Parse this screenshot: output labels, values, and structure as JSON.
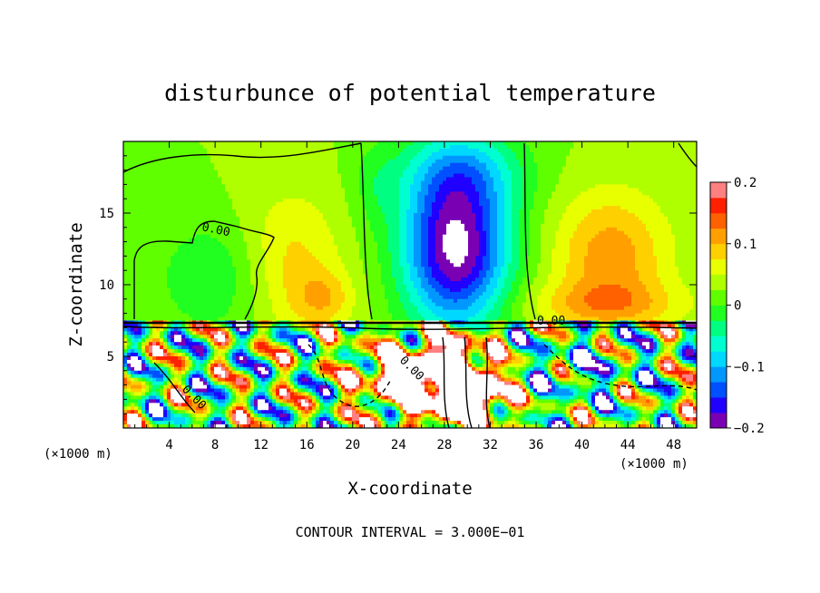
{
  "chart_data": {
    "type": "heatmap",
    "title": "disturbunce of potential temperature",
    "xlabel": "X-coordinate",
    "ylabel": "Z-coordinate",
    "x_unit_label_left": "(×1000 m)",
    "x_unit_label_right": "(×1000 m)",
    "xlim": [
      0,
      50
    ],
    "ylim": [
      0,
      20
    ],
    "x_ticks": [
      4,
      8,
      12,
      16,
      20,
      24,
      28,
      32,
      36,
      40,
      44,
      48
    ],
    "x_tick_labels": [
      "4",
      "8",
      "12",
      "16",
      "20",
      "24",
      "28",
      "32",
      "36",
      "40",
      "44",
      "48"
    ],
    "y_ticks": [
      5,
      10,
      15
    ],
    "y_tick_labels": [
      "5",
      "10",
      "15"
    ],
    "colorbar": {
      "vmin": -0.2,
      "vmax": 0.2,
      "levels": [
        -0.2,
        -0.175,
        -0.15,
        -0.125,
        -0.1,
        -0.075,
        -0.05,
        -0.025,
        0,
        0.025,
        0.05,
        0.075,
        0.1,
        0.125,
        0.15,
        0.175,
        0.2
      ],
      "colors": [
        "#7a00b4",
        "#2000ff",
        "#0050ff",
        "#0098ff",
        "#00d8ff",
        "#00ffd0",
        "#00ff80",
        "#20ff20",
        "#60ff00",
        "#b0ff00",
        "#e8ff00",
        "#ffd000",
        "#ffa000",
        "#ff6000",
        "#ff2000",
        "#ff8080"
      ],
      "tick_values": [
        0.2,
        0.1,
        0,
        -0.1,
        -0.2
      ],
      "tick_labels": [
        "0.2",
        "0.1",
        "0",
        "−0.1",
        "−0.2"
      ]
    },
    "contour_labels": [
      "0.00",
      "0.00",
      "0.00",
      "0.00"
    ],
    "grid": false,
    "legend": "colorbar-right"
  },
  "footer": {
    "contour_interval": "CONTOUR INTERVAL = 3.000E−01"
  }
}
